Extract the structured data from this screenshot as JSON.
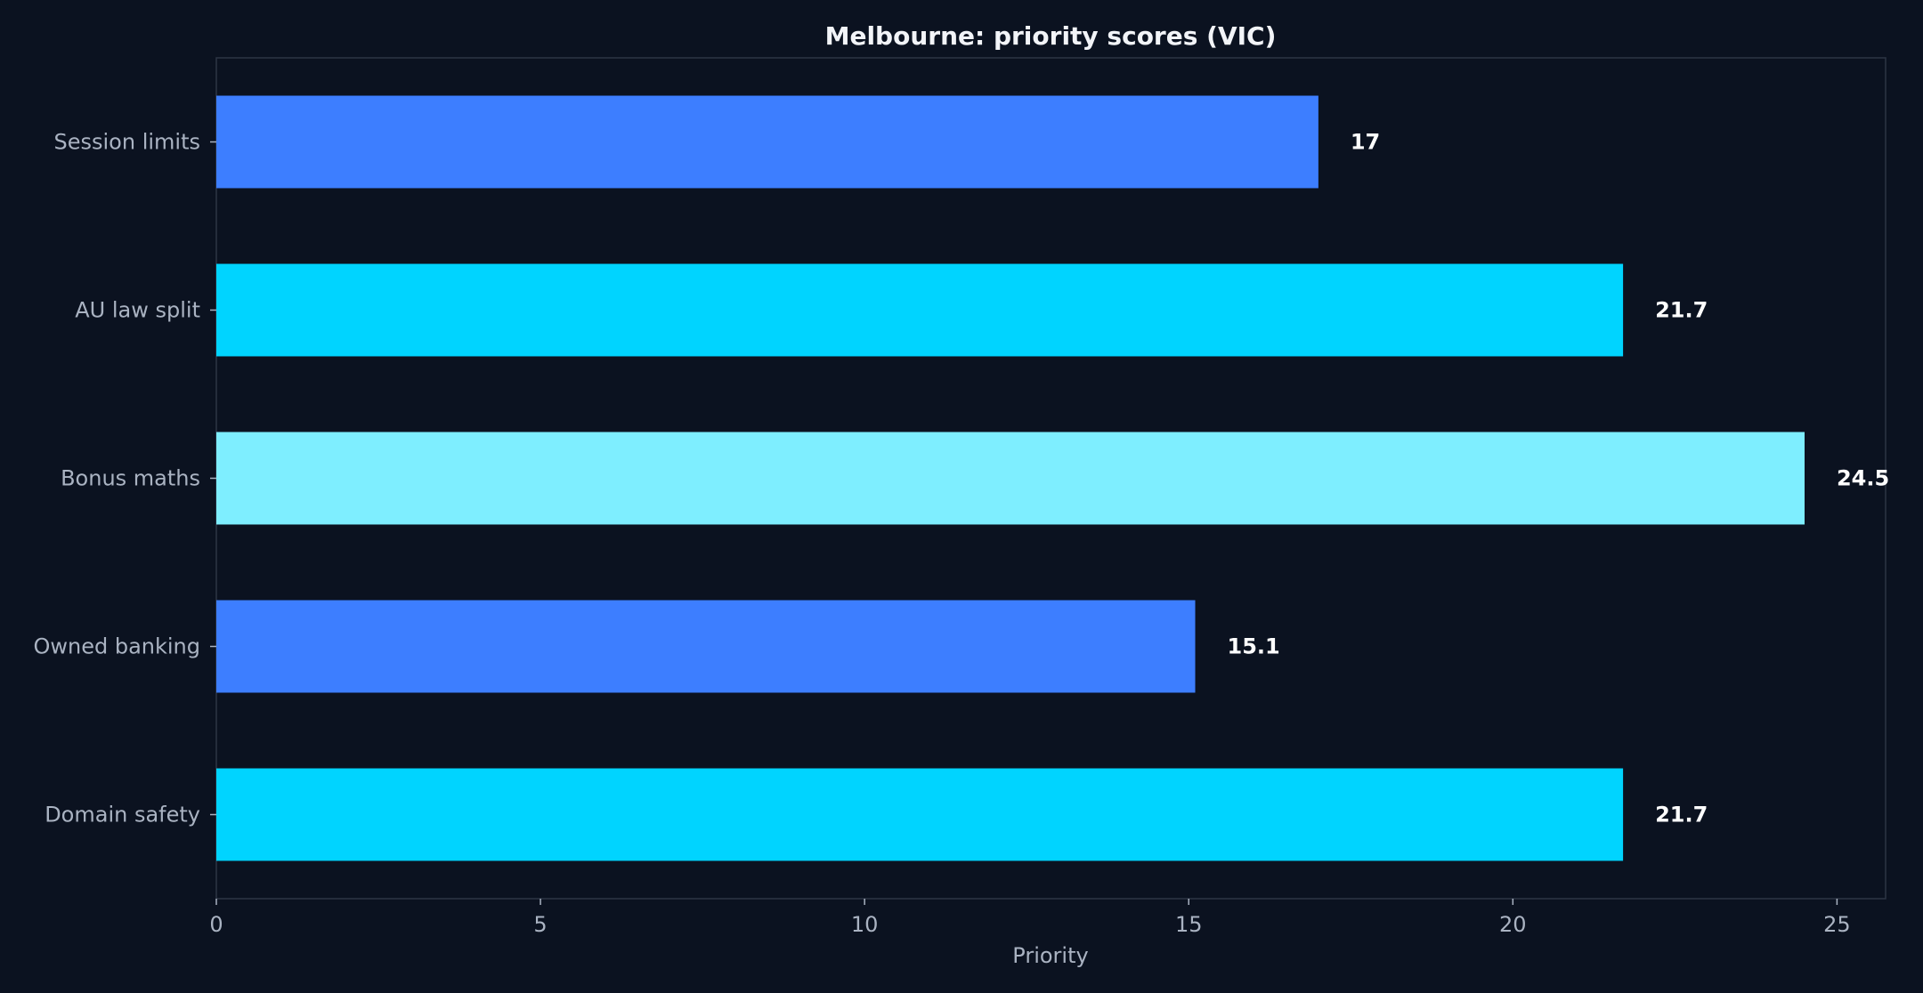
{
  "chart_data": {
    "type": "bar",
    "orientation": "horizontal",
    "title": "Melbourne: priority scores (VIC)",
    "xlabel": "Priority",
    "ylabel": "",
    "categories": [
      "Session limits",
      "AU law split",
      "Bonus maths",
      "Owned banking",
      "Domain safety"
    ],
    "values": [
      17,
      21.7,
      24.5,
      15.1,
      21.7
    ],
    "value_labels": [
      "17",
      "21.7",
      "24.5",
      "15.1",
      "21.7"
    ],
    "bar_colors": [
      "#3d7eff",
      "#00d4ff",
      "#7eeeff",
      "#3d7eff",
      "#00d4ff"
    ],
    "xlim": [
      0,
      25.75
    ],
    "xticks": [
      0,
      5,
      10,
      15,
      20,
      25
    ],
    "xtick_labels": [
      "0",
      "5",
      "10",
      "15",
      "20",
      "25"
    ],
    "grid": false,
    "legend": "none"
  },
  "colors": {
    "background": "#0b1220",
    "frame": "#2c3444",
    "tick_text": "#aab3c2",
    "title_text": "#f2f4f8",
    "value_text": "#ffffff"
  }
}
